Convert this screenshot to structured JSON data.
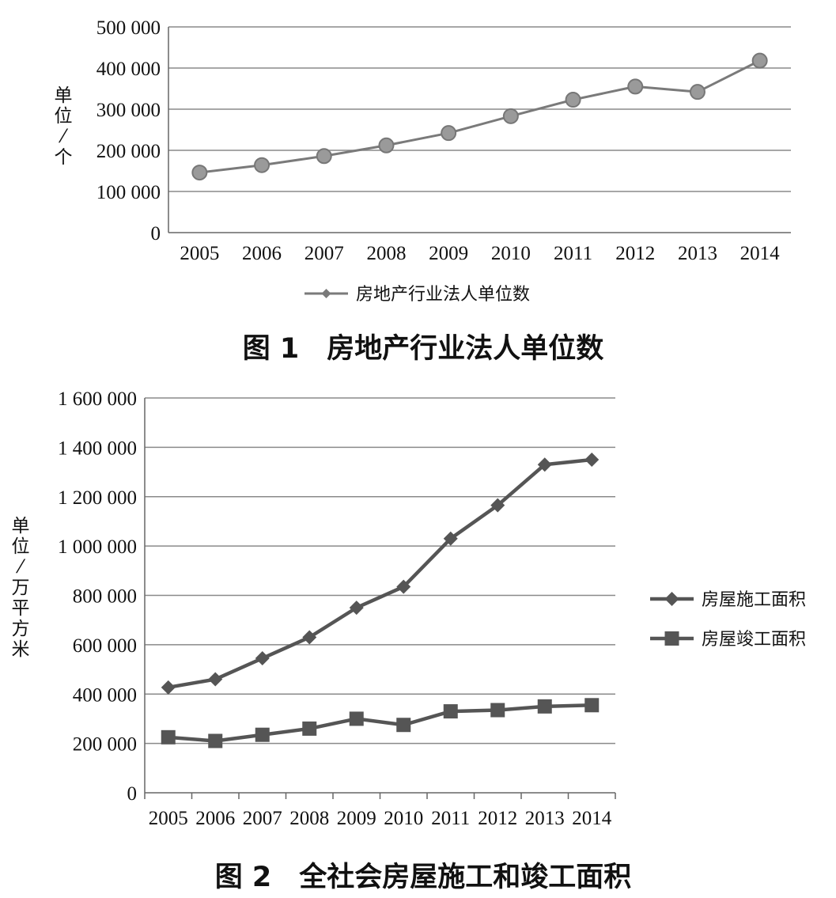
{
  "chart_data": [
    {
      "type": "line",
      "caption": "图 1　房地产行业法人单位数",
      "ylabel": "单位/个",
      "xlabel": "",
      "categories": [
        "2005",
        "2006",
        "2007",
        "2008",
        "2009",
        "2010",
        "2011",
        "2012",
        "2013",
        "2014"
      ],
      "ylim": [
        0,
        500000
      ],
      "yticks": [
        "0",
        "100 000",
        "200 000",
        "300 000",
        "400 000",
        "500 000"
      ],
      "ytick_values": [
        0,
        100000,
        200000,
        300000,
        400000,
        500000
      ],
      "grid": true,
      "legend_position": "bottom",
      "series": [
        {
          "name": "房地产行业法人单位数",
          "marker": "diamond",
          "color": "#7a7a7a",
          "values": [
            146000,
            164000,
            186000,
            212000,
            242000,
            283000,
            323000,
            355000,
            342000,
            418000
          ]
        }
      ]
    },
    {
      "type": "line",
      "caption": "图 2　全社会房屋施工和竣工面积",
      "ylabel": "单位/万平方米",
      "xlabel": "",
      "categories": [
        "2005",
        "2006",
        "2007",
        "2008",
        "2009",
        "2010",
        "2011",
        "2012",
        "2013",
        "2014"
      ],
      "ylim": [
        0,
        1600000
      ],
      "yticks": [
        "0",
        "200 000",
        "400 000",
        "600 000",
        "800 000",
        "1 000 000",
        "1 200 000",
        "1 400 000",
        "1 600 000"
      ],
      "ytick_values": [
        0,
        200000,
        400000,
        600000,
        800000,
        1000000,
        1200000,
        1400000,
        1600000
      ],
      "grid": true,
      "legend_position": "right",
      "series": [
        {
          "name": "房屋施工面积",
          "marker": "diamond",
          "color": "#555555",
          "values": [
            427000,
            460000,
            545000,
            630000,
            750000,
            835000,
            1030000,
            1165000,
            1330000,
            1350000
          ]
        },
        {
          "name": "房屋竣工面积",
          "marker": "square",
          "color": "#555555",
          "values": [
            225000,
            210000,
            235000,
            260000,
            300000,
            275000,
            330000,
            335000,
            350000,
            355000
          ]
        }
      ]
    }
  ]
}
